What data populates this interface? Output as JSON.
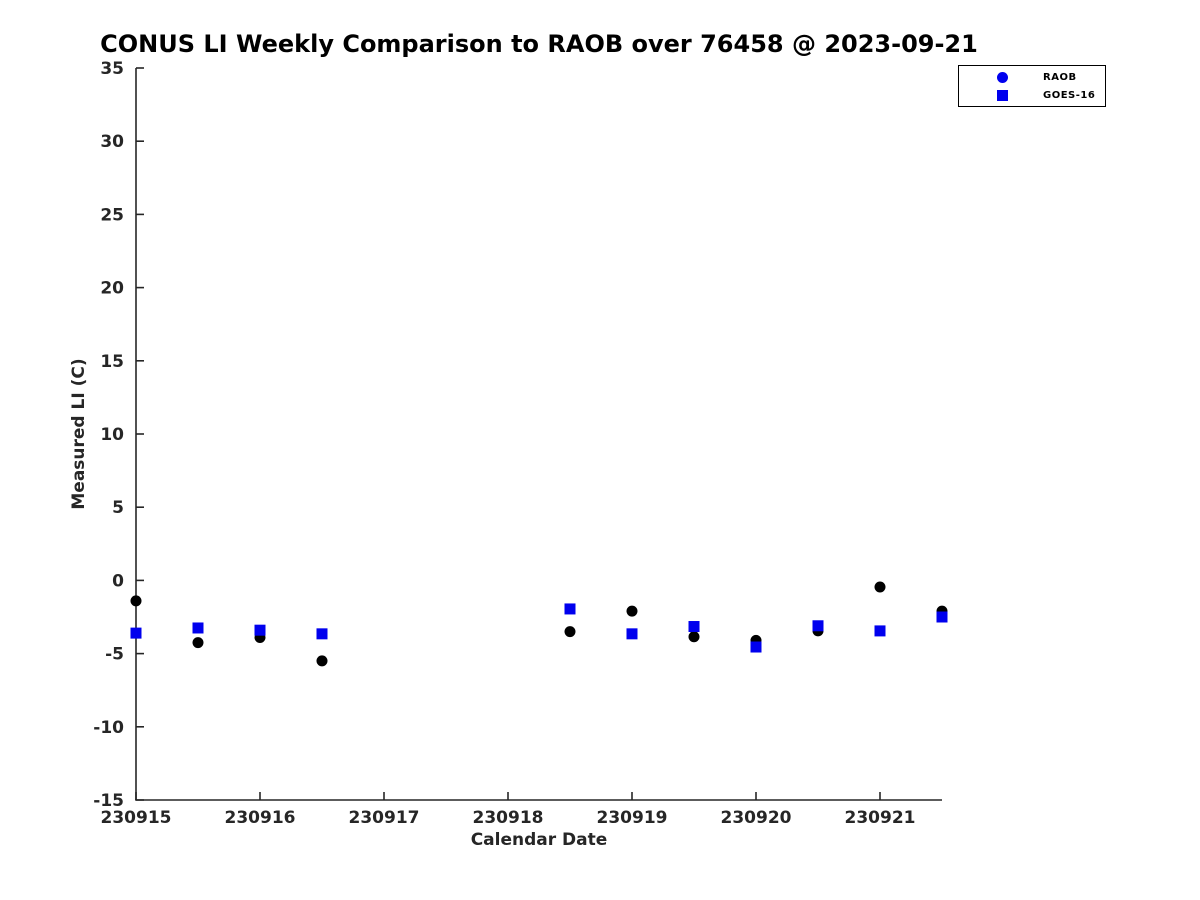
{
  "figure": {
    "title": "CONUS LI Weekly Comparison to RAOB over 76458 @ 2023-09-21"
  },
  "legend": {
    "items": [
      {
        "label": "RAOB",
        "marker": "circle",
        "color": "#0000ee"
      },
      {
        "label": "GOES-16",
        "marker": "square",
        "color": "#0000ee"
      }
    ]
  },
  "chart_data": {
    "type": "scatter",
    "title": "CONUS LI Weekly Comparison to RAOB over 76458 @ 2023-09-21",
    "xlabel": "Calendar Date",
    "ylabel": "Measured LI (C)",
    "xlim": [
      230915,
      230921.5
    ],
    "ylim": [
      -15,
      35
    ],
    "x_ticks": [
      230915,
      230916,
      230917,
      230918,
      230919,
      230920,
      230921
    ],
    "y_ticks": [
      35,
      30,
      25,
      20,
      15,
      10,
      5,
      0,
      -5,
      -10,
      -15
    ],
    "grid": false,
    "legend_position": "top-right-outside",
    "axis_color": "#262626",
    "series": [
      {
        "name": "RAOB",
        "marker": "circle",
        "color": "#000000",
        "legend_marker_color": "#0000ee",
        "points": [
          [
            230915,
            -1.4
          ],
          [
            230915.5,
            -4.25
          ],
          [
            230916,
            -3.9
          ],
          [
            230916.5,
            -5.5
          ],
          [
            230918.5,
            -3.5
          ],
          [
            230919,
            -2.1
          ],
          [
            230919.5,
            -3.85
          ],
          [
            230920,
            -4.1
          ],
          [
            230920.5,
            -3.45
          ],
          [
            230921,
            -0.45
          ],
          [
            230921.5,
            -2.1
          ]
        ]
      },
      {
        "name": "GOES-16",
        "marker": "square",
        "color": "#0000ee",
        "legend_marker_color": "#0000ee",
        "points": [
          [
            230915,
            -3.6
          ],
          [
            230915.5,
            -3.25
          ],
          [
            230916,
            -3.4
          ],
          [
            230916.5,
            -3.65
          ],
          [
            230918.5,
            -1.95
          ],
          [
            230919,
            -3.65
          ],
          [
            230919.5,
            -3.15
          ],
          [
            230920,
            -4.55
          ],
          [
            230920.5,
            -3.1
          ],
          [
            230921,
            -3.45
          ],
          [
            230921.5,
            -2.5
          ]
        ]
      }
    ]
  }
}
